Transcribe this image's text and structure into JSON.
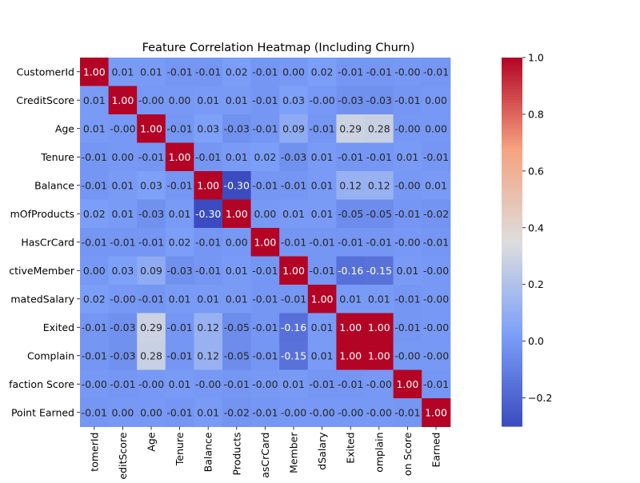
{
  "chart_data": {
    "type": "heatmap",
    "title": "Feature Correlation Heatmap (Including Churn)",
    "row_labels": [
      "CustomerId",
      "CreditScore",
      "Age",
      "Tenure",
      "Balance",
      "mOfProducts",
      "HasCrCard",
      "ctiveMember",
      "matedSalary",
      "Exited",
      "Complain",
      "faction Score",
      "Point Earned"
    ],
    "col_labels": [
      "tomerId",
      "editScore",
      "Age",
      "Tenure",
      "Balance",
      "Products",
      "asCrCard",
      "Member",
      "dSalary",
      "Exited",
      "omplain",
      "on Score",
      "Earned"
    ],
    "cell_text": [
      [
        "1.00",
        "0.01",
        "0.01",
        "-0.01",
        "-0.01",
        "0.02",
        "-0.01",
        "0.00",
        "0.02",
        "-0.01",
        "-0.01",
        "-0.00",
        "-0.01"
      ],
      [
        "0.01",
        "1.00",
        "-0.00",
        "0.00",
        "0.01",
        "0.01",
        "-0.01",
        "0.03",
        "-0.00",
        "-0.03",
        "-0.03",
        "-0.01",
        "0.00"
      ],
      [
        "0.01",
        "-0.00",
        "1.00",
        "-0.01",
        "0.03",
        "-0.03",
        "-0.01",
        "0.09",
        "-0.01",
        "0.29",
        "0.28",
        "-0.00",
        "0.00"
      ],
      [
        "-0.01",
        "0.00",
        "-0.01",
        "1.00",
        "-0.01",
        "0.01",
        "0.02",
        "-0.03",
        "0.01",
        "-0.01",
        "-0.01",
        "0.01",
        "-0.01"
      ],
      [
        "-0.01",
        "0.01",
        "0.03",
        "-0.01",
        "1.00",
        "-0.30",
        "-0.01",
        "-0.01",
        "0.01",
        "0.12",
        "0.12",
        "-0.00",
        "0.01"
      ],
      [
        "0.02",
        "0.01",
        "-0.03",
        "0.01",
        "-0.30",
        "1.00",
        "0.00",
        "0.01",
        "0.01",
        "-0.05",
        "-0.05",
        "-0.01",
        "-0.02"
      ],
      [
        "-0.01",
        "-0.01",
        "-0.01",
        "0.02",
        "-0.01",
        "0.00",
        "1.00",
        "-0.01",
        "-0.01",
        "-0.01",
        "-0.01",
        "-0.00",
        "-0.01"
      ],
      [
        "0.00",
        "0.03",
        "0.09",
        "-0.03",
        "-0.01",
        "0.01",
        "-0.01",
        "1.00",
        "-0.01",
        "-0.16",
        "-0.15",
        "0.01",
        "-0.00"
      ],
      [
        "0.02",
        "-0.00",
        "-0.01",
        "0.01",
        "0.01",
        "0.01",
        "-0.01",
        "-0.01",
        "1.00",
        "0.01",
        "0.01",
        "-0.01",
        "-0.00"
      ],
      [
        "-0.01",
        "-0.03",
        "0.29",
        "-0.01",
        "0.12",
        "-0.05",
        "-0.01",
        "-0.16",
        "0.01",
        "1.00",
        "1.00",
        "-0.01",
        "-0.00"
      ],
      [
        "-0.01",
        "-0.03",
        "0.28",
        "-0.01",
        "0.12",
        "-0.05",
        "-0.01",
        "-0.15",
        "0.01",
        "1.00",
        "1.00",
        "-0.00",
        "-0.00"
      ],
      [
        "-0.00",
        "-0.01",
        "-0.00",
        "0.01",
        "-0.00",
        "-0.01",
        "-0.00",
        "0.01",
        "-0.01",
        "-0.01",
        "-0.00",
        "1.00",
        "-0.01"
      ],
      [
        "-0.01",
        "0.00",
        "0.00",
        "-0.01",
        "0.01",
        "-0.02",
        "-0.01",
        "-0.00",
        "-0.00",
        "-0.00",
        "-0.00",
        "-0.01",
        "1.00"
      ]
    ],
    "colorbar": {
      "vmin": -0.3,
      "vmax": 1.0,
      "ticks": [
        -0.2,
        0.0,
        0.2,
        0.4,
        0.6,
        0.8,
        1.0
      ],
      "tick_labels": [
        "−0.2",
        "0.0",
        "0.2",
        "0.4",
        "0.6",
        "0.8",
        "1.0"
      ],
      "colormap": "coolwarm"
    },
    "colors": {
      "low": "#3b4cc0",
      "mid": "#dddddd",
      "high": "#b40426"
    }
  }
}
